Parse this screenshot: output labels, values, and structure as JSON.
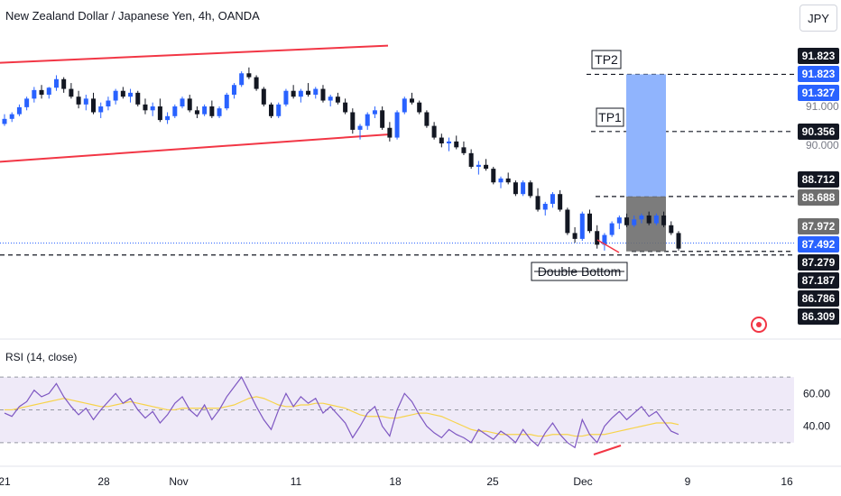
{
  "header": {
    "title": "New Zealand Dollar / Japanese Yen, 4h, OANDA",
    "currency_button": "JPY"
  },
  "colors": {
    "up": "#2962ff",
    "down": "#131722",
    "channel": "#f23645",
    "target_zone": "#90b4fd",
    "entry_zone": "#6e6e6e",
    "rsi_line": "#7e57c2",
    "rsi_ma": "#f7d34a",
    "rsi_band": "#efeaf8",
    "price_line": "#2962ff"
  },
  "annotations": {
    "tp2": "TP2",
    "tp1": "TP1",
    "double_bottom": "Double Bottom"
  },
  "rsi": {
    "title": "RSI (14, close)",
    "ticks": [
      "60.00",
      "40.00"
    ]
  },
  "chart_data": {
    "type": "candlestick",
    "x_axis_labels": [
      "21",
      "28",
      "Nov",
      "11",
      "18",
      "25",
      "Dec",
      "9",
      "16"
    ],
    "price_axis": {
      "ticks": [
        "91.000",
        "90.000"
      ],
      "labels": [
        {
          "text": "91.823",
          "style": "black"
        },
        {
          "text": "91.823",
          "style": "blue"
        },
        {
          "text": "91.327",
          "style": "blue"
        },
        {
          "text": "90.356",
          "style": "black"
        },
        {
          "text": "88.712",
          "style": "black"
        },
        {
          "text": "88.688",
          "style": "grey"
        },
        {
          "text": "87.972",
          "style": "grey"
        },
        {
          "text": "87.492",
          "style": "blue"
        },
        {
          "text": "87.279",
          "style": "black"
        },
        {
          "text": "87.187",
          "style": "black"
        },
        {
          "text": "86.786",
          "style": "black"
        },
        {
          "text": "86.309",
          "style": "black"
        }
      ]
    },
    "last_price": 87.492,
    "levels": {
      "tp2": 91.823,
      "tp1": 90.356,
      "entry_top": 88.688,
      "stop": 87.279,
      "support": 87.187
    },
    "channel": {
      "upper": [
        [
          0,
          92.12
        ],
        [
          430,
          92.12
        ]
      ],
      "lower": [
        [
          0,
          89.58
        ],
        [
          430,
          90.28
        ]
      ]
    },
    "candles": [
      [
        90.55,
        90.8,
        90.5,
        90.68
      ],
      [
        90.68,
        90.85,
        90.6,
        90.8
      ],
      [
        90.8,
        91.05,
        90.75,
        90.98
      ],
      [
        90.98,
        91.25,
        90.9,
        91.2
      ],
      [
        91.2,
        91.5,
        91.1,
        91.42
      ],
      [
        91.42,
        91.55,
        91.2,
        91.3
      ],
      [
        91.3,
        91.5,
        91.2,
        91.48
      ],
      [
        91.48,
        91.8,
        91.4,
        91.7
      ],
      [
        91.7,
        91.75,
        91.35,
        91.45
      ],
      [
        91.45,
        91.6,
        91.2,
        91.25
      ],
      [
        91.25,
        91.4,
        90.95,
        91.05
      ],
      [
        91.05,
        91.3,
        90.9,
        91.2
      ],
      [
        91.2,
        91.35,
        90.8,
        90.85
      ],
      [
        90.85,
        91.1,
        90.7,
        91.0
      ],
      [
        91.0,
        91.25,
        90.9,
        91.15
      ],
      [
        91.15,
        91.45,
        91.05,
        91.4
      ],
      [
        91.4,
        91.5,
        91.2,
        91.25
      ],
      [
        91.25,
        91.45,
        91.1,
        91.35
      ],
      [
        91.35,
        91.4,
        91.0,
        91.05
      ],
      [
        91.05,
        91.2,
        90.8,
        90.9
      ],
      [
        90.9,
        91.1,
        90.75,
        91.0
      ],
      [
        91.0,
        91.2,
        90.6,
        90.65
      ],
      [
        90.65,
        90.85,
        90.55,
        90.75
      ],
      [
        90.75,
        91.05,
        90.7,
        91.0
      ],
      [
        91.0,
        91.25,
        90.95,
        91.2
      ],
      [
        91.2,
        91.3,
        90.85,
        90.9
      ],
      [
        90.9,
        91.0,
        90.7,
        90.8
      ],
      [
        90.8,
        91.05,
        90.75,
        91.0
      ],
      [
        91.0,
        91.15,
        90.7,
        90.75
      ],
      [
        90.75,
        91.0,
        90.7,
        90.95
      ],
      [
        90.95,
        91.35,
        90.9,
        91.3
      ],
      [
        91.3,
        91.6,
        91.2,
        91.55
      ],
      [
        91.55,
        91.9,
        91.5,
        91.85
      ],
      [
        91.85,
        92.0,
        91.7,
        91.75
      ],
      [
        91.75,
        91.8,
        91.4,
        91.45
      ],
      [
        91.45,
        91.5,
        91.0,
        91.05
      ],
      [
        91.05,
        91.1,
        90.7,
        90.75
      ],
      [
        90.75,
        91.1,
        90.7,
        91.05
      ],
      [
        91.05,
        91.45,
        91.0,
        91.4
      ],
      [
        91.4,
        91.55,
        91.2,
        91.25
      ],
      [
        91.25,
        91.45,
        91.1,
        91.4
      ],
      [
        91.4,
        91.6,
        91.25,
        91.3
      ],
      [
        91.3,
        91.5,
        91.2,
        91.45
      ],
      [
        91.45,
        91.55,
        91.1,
        91.15
      ],
      [
        91.15,
        91.3,
        91.0,
        91.25
      ],
      [
        91.25,
        91.35,
        91.05,
        91.1
      ],
      [
        91.1,
        91.2,
        90.8,
        90.85
      ],
      [
        90.85,
        90.95,
        90.3,
        90.4
      ],
      [
        90.4,
        90.55,
        90.15,
        90.5
      ],
      [
        90.5,
        90.85,
        90.4,
        90.8
      ],
      [
        90.8,
        91.0,
        90.7,
        90.9
      ],
      [
        90.9,
        91.0,
        90.4,
        90.45
      ],
      [
        90.45,
        90.6,
        90.1,
        90.2
      ],
      [
        90.2,
        90.9,
        90.15,
        90.85
      ],
      [
        90.85,
        91.25,
        90.8,
        91.2
      ],
      [
        91.2,
        91.35,
        91.05,
        91.1
      ],
      [
        91.1,
        91.15,
        90.8,
        90.85
      ],
      [
        90.85,
        90.9,
        90.45,
        90.5
      ],
      [
        90.5,
        90.6,
        90.15,
        90.2
      ],
      [
        90.2,
        90.3,
        89.95,
        90.05
      ],
      [
        90.05,
        90.2,
        89.85,
        90.1
      ],
      [
        90.1,
        90.25,
        89.9,
        89.95
      ],
      [
        89.95,
        90.1,
        89.75,
        89.8
      ],
      [
        89.8,
        89.9,
        89.4,
        89.45
      ],
      [
        89.45,
        89.6,
        89.25,
        89.5
      ],
      [
        89.5,
        89.65,
        89.35,
        89.4
      ],
      [
        89.4,
        89.45,
        89.0,
        89.05
      ],
      [
        89.05,
        89.2,
        88.9,
        89.15
      ],
      [
        89.15,
        89.3,
        89.0,
        89.05
      ],
      [
        89.05,
        89.1,
        88.7,
        88.75
      ],
      [
        88.75,
        89.1,
        88.7,
        89.05
      ],
      [
        89.05,
        89.1,
        88.65,
        88.7
      ],
      [
        88.7,
        88.9,
        88.3,
        88.35
      ],
      [
        88.35,
        88.55,
        88.2,
        88.5
      ],
      [
        88.5,
        88.8,
        88.4,
        88.75
      ],
      [
        88.75,
        88.85,
        88.3,
        88.35
      ],
      [
        88.35,
        88.4,
        87.7,
        87.75
      ],
      [
        87.75,
        87.9,
        87.5,
        87.6
      ],
      [
        87.6,
        88.3,
        87.55,
        88.25
      ],
      [
        88.25,
        88.35,
        87.75,
        87.8
      ],
      [
        87.8,
        87.95,
        87.35,
        87.45
      ],
      [
        87.45,
        87.75,
        87.3,
        87.7
      ],
      [
        87.7,
        88.05,
        87.65,
        88.0
      ],
      [
        88.0,
        88.2,
        87.85,
        88.15
      ],
      [
        88.15,
        88.25,
        87.9,
        87.95
      ],
      [
        87.95,
        88.2,
        87.9,
        88.1
      ],
      [
        88.1,
        88.25,
        88.0,
        88.2
      ],
      [
        88.2,
        88.3,
        87.95,
        88.0
      ],
      [
        88.0,
        88.25,
        87.95,
        88.2
      ],
      [
        88.2,
        88.3,
        87.9,
        87.95
      ],
      [
        87.95,
        88.05,
        87.7,
        87.75
      ],
      [
        87.75,
        87.8,
        87.3,
        87.35
      ]
    ],
    "rsi": {
      "range": [
        20,
        75
      ],
      "band": [
        30,
        70
      ],
      "values": [
        48,
        46,
        52,
        55,
        62,
        58,
        60,
        66,
        58,
        52,
        47,
        51,
        44,
        50,
        55,
        60,
        54,
        57,
        50,
        45,
        49,
        42,
        47,
        54,
        58,
        50,
        46,
        53,
        44,
        50,
        58,
        64,
        70,
        61,
        52,
        44,
        38,
        50,
        60,
        52,
        58,
        54,
        57,
        48,
        52,
        47,
        42,
        33,
        40,
        48,
        52,
        40,
        34,
        50,
        60,
        55,
        47,
        40,
        36,
        33,
        38,
        35,
        33,
        30,
        38,
        35,
        32,
        37,
        34,
        30,
        38,
        32,
        28,
        36,
        42,
        35,
        30,
        27,
        44,
        35,
        30,
        40,
        45,
        49,
        44,
        48,
        52,
        46,
        49,
        43,
        37,
        35
      ],
      "ma_values": [
        50,
        50,
        51,
        52,
        53,
        54,
        55,
        56,
        57,
        56,
        55,
        54,
        53,
        52,
        52,
        53,
        54,
        55,
        54,
        53,
        52,
        51,
        50,
        50,
        51,
        51,
        51,
        51,
        51,
        51,
        52,
        53,
        55,
        57,
        58,
        57,
        55,
        53,
        52,
        52,
        53,
        53,
        54,
        54,
        53,
        52,
        51,
        49,
        47,
        46,
        46,
        46,
        45,
        45,
        46,
        47,
        48,
        48,
        47,
        46,
        44,
        42,
        40,
        38,
        37,
        37,
        36,
        35,
        35,
        35,
        35,
        35,
        34,
        34,
        35,
        35,
        35,
        34,
        34,
        35,
        35,
        35,
        36,
        37,
        38,
        39,
        40,
        41,
        42,
        42,
        42,
        41
      ]
    }
  }
}
